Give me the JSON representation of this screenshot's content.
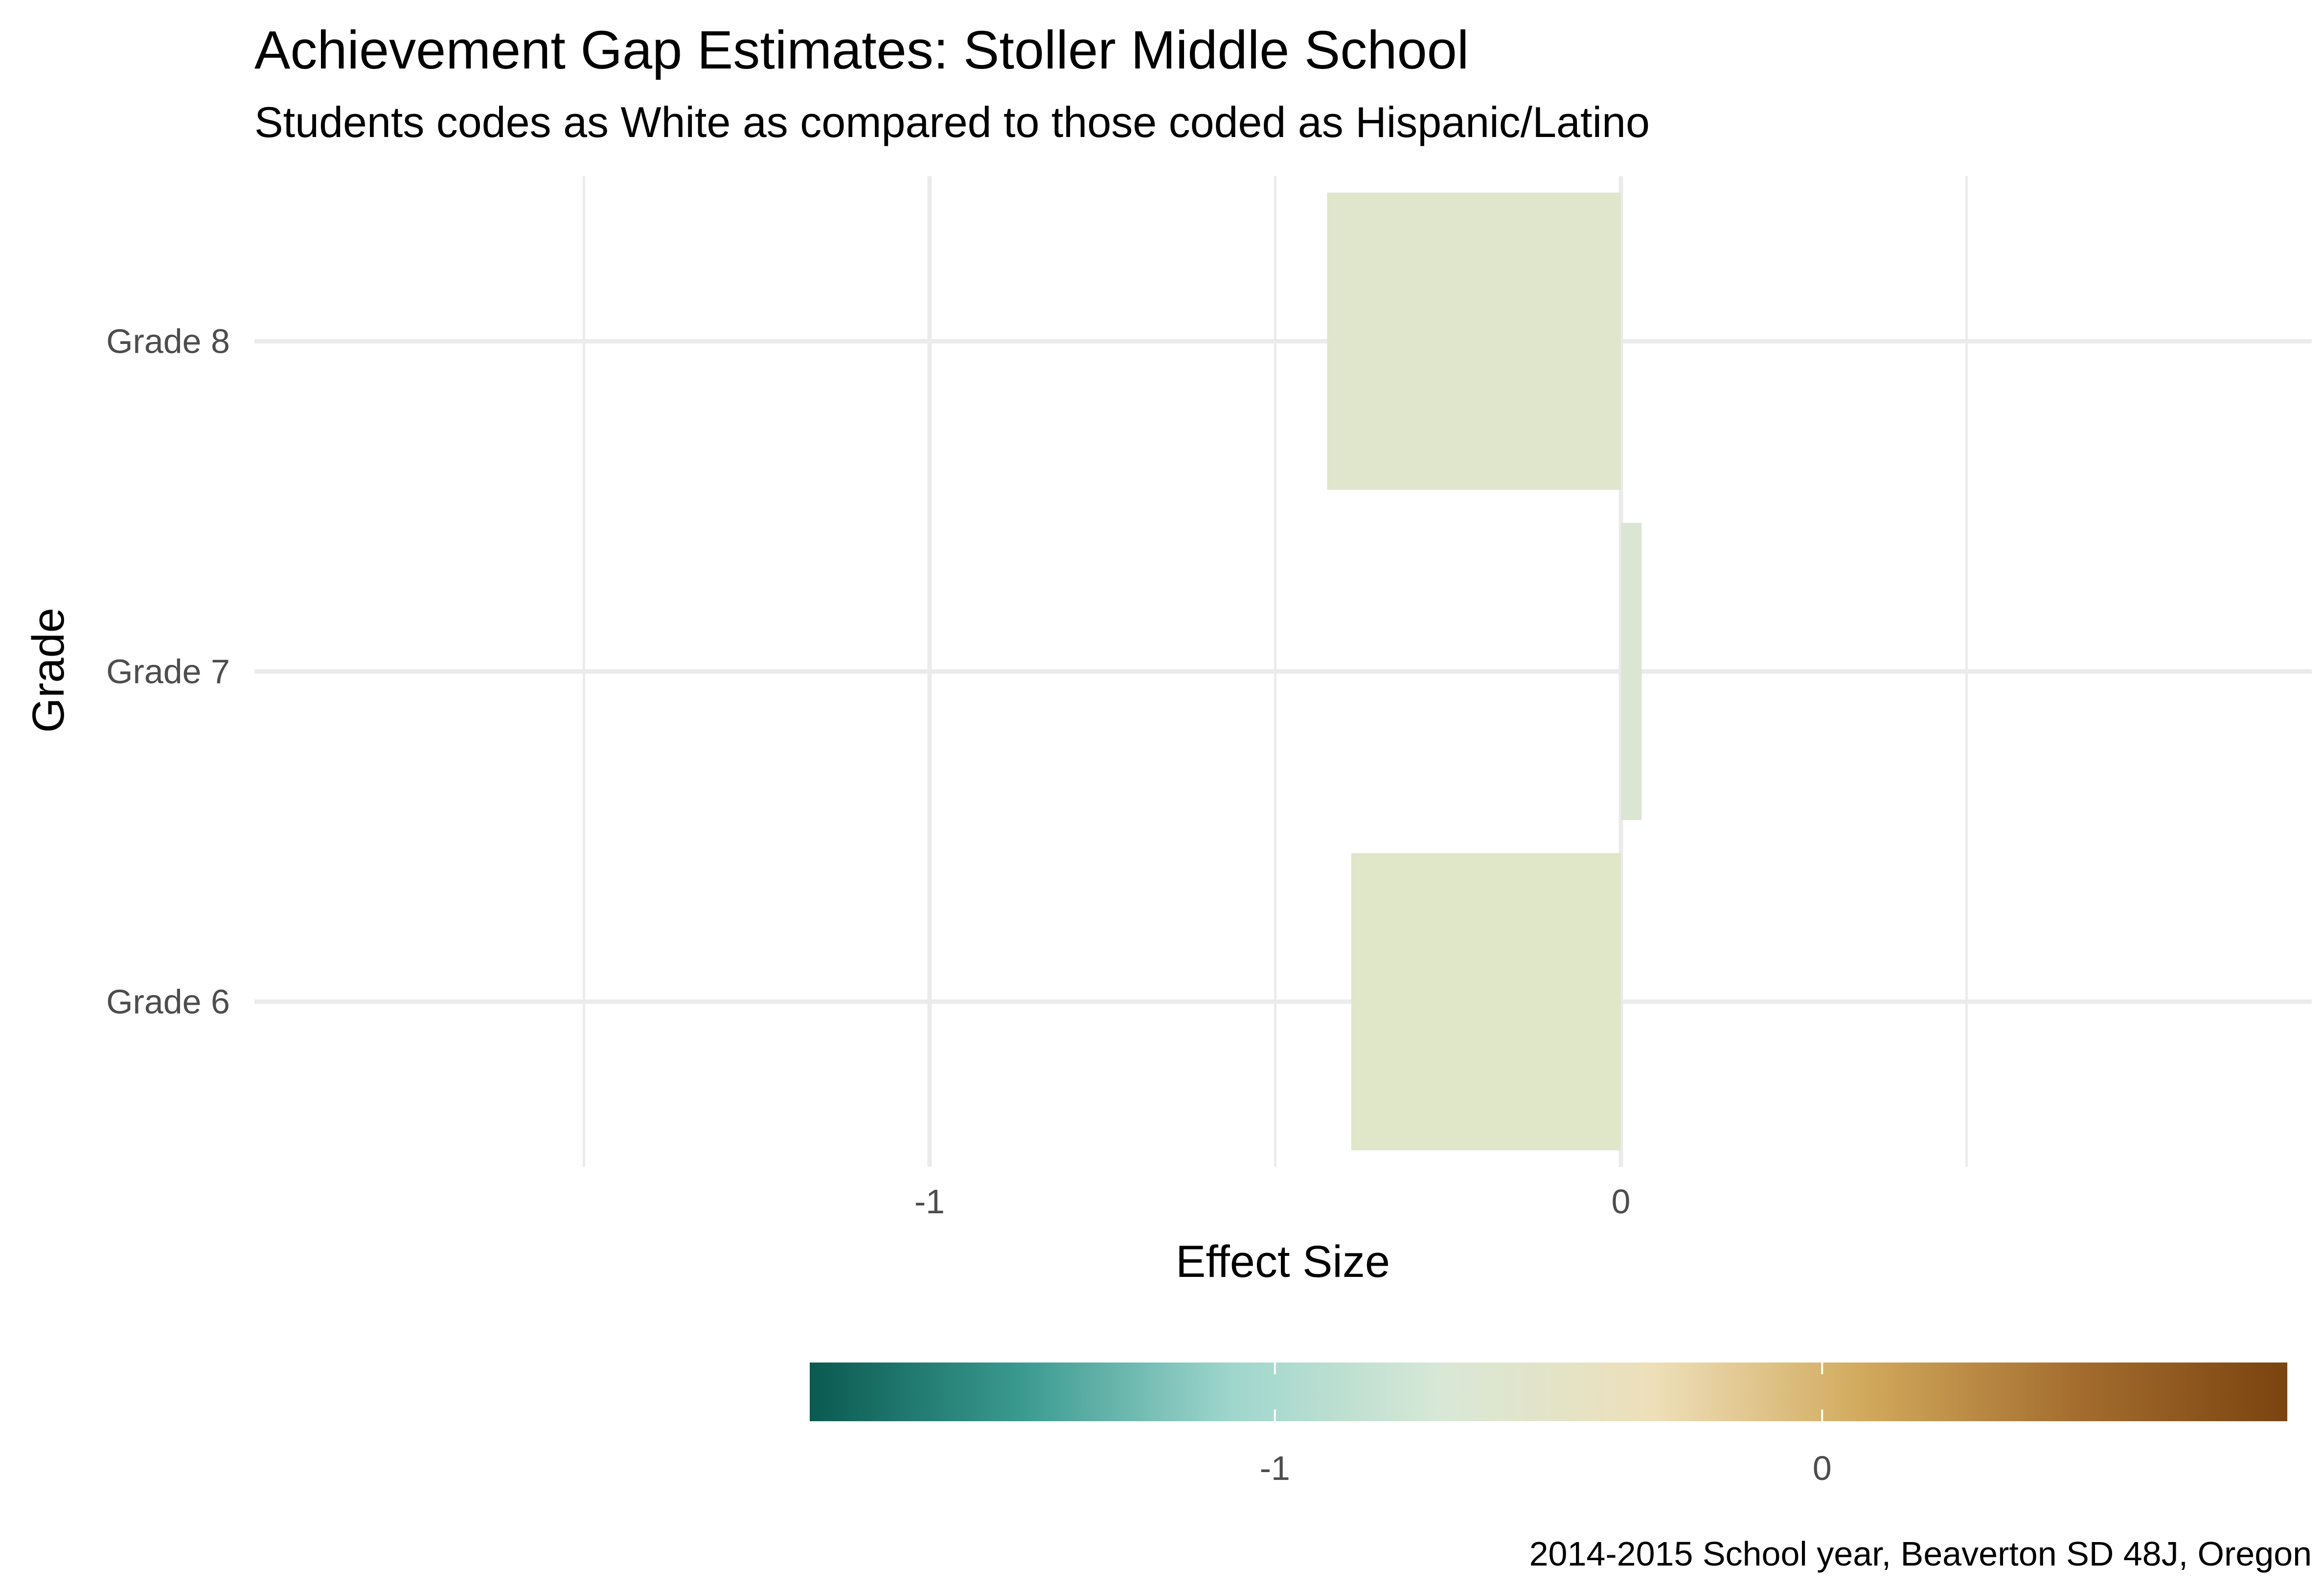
{
  "chart_data": {
    "type": "bar",
    "orientation": "horizontal",
    "title": "Achievement Gap Estimates: Stoller Middle School",
    "subtitle": "Students codes as White as compared to those coded as Hispanic/Latino",
    "xlabel": "Effect Size",
    "ylabel": "Grade",
    "caption": "2014-2015 School year, Beaverton SD 48J, Oregon",
    "categories": [
      "Grade 6",
      "Grade 7",
      "Grade 8"
    ],
    "values": [
      -0.39,
      0.03,
      -0.425
    ],
    "bar_colors": [
      "#e0e6c8",
      "#dbe6d2",
      "#dfe6cb"
    ],
    "x_ticks": [
      -1,
      0
    ],
    "x_tick_labels": [
      "-1",
      "0"
    ],
    "xlim": [
      -1.5,
      1.0
    ],
    "grid": true,
    "legend": {
      "type": "colorbar",
      "placement": "bottom",
      "range": [
        -1.85,
        0.85
      ],
      "ticks": [
        -1,
        0
      ],
      "tick_labels": [
        "-1",
        "0"
      ],
      "colors": [
        "#0a5a50",
        "#3a9a90",
        "#9fd6cd",
        "#d8e8d6",
        "#eedfb9",
        "#d1a95c",
        "#a46d2e",
        "#7a4310"
      ]
    }
  }
}
